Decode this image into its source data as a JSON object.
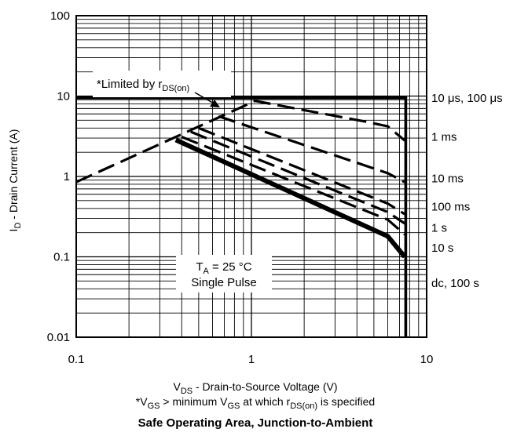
{
  "chart_data": {
    "type": "line",
    "xscale": "log",
    "yscale": "log",
    "xlim": [
      0.1,
      10
    ],
    "ylim": [
      0.01,
      100
    ],
    "grid": true,
    "x_ticks": [
      {
        "value": 0.1,
        "label": "0.1"
      },
      {
        "value": 1,
        "label": "1"
      },
      {
        "value": 10,
        "label": "10"
      }
    ],
    "y_ticks": [
      {
        "value": 100,
        "label": "100"
      },
      {
        "value": 10,
        "label": "10"
      },
      {
        "value": 1,
        "label": "1"
      },
      {
        "value": 0.1,
        "label": "0.1"
      },
      {
        "value": 0.01,
        "label": "0.01"
      }
    ],
    "xlabel": {
      "main": "V",
      "sub": "DS",
      "rest": " - Drain-to-Source Voltage (V)"
    },
    "ylabel": {
      "main": "I",
      "sub": "D",
      "rest": " - Drain Current (A)"
    },
    "footnote": {
      "p1": "*V",
      "s1": "GS",
      "p2": " > minimum V",
      "s2": "GS",
      "p3": " at which r",
      "s3": "DS(on)",
      "p4": " is specified"
    },
    "title": "Safe Operating Area, Junction-to-Ambient",
    "annotation": {
      "p1": "*Limited by r",
      "s1": "DS(on)"
    },
    "conditions": {
      "p1": "T",
      "s1": "A",
      "p2": " = 25 °C",
      "line2": "Single Pulse"
    },
    "series": [
      {
        "name": "10 μs, 100 μs",
        "style": "solid",
        "label_y": 9.5,
        "points": [
          [
            0.1,
            9.5
          ],
          [
            7.6,
            9.5
          ],
          [
            7.6,
            0.01
          ]
        ]
      },
      {
        "name": "1 ms",
        "style": "dashed",
        "label_y": 3.1,
        "points": [
          [
            0.1,
            0.85
          ],
          [
            1.05,
            8.7
          ],
          [
            4.5,
            4.8
          ],
          [
            6.0,
            4.2
          ],
          [
            7.5,
            2.8
          ]
        ]
      },
      {
        "name": "10 ms",
        "style": "dashed",
        "label_y": 0.95,
        "points": [
          [
            0.65,
            5.6
          ],
          [
            6.0,
            1.1
          ],
          [
            7.5,
            0.85
          ]
        ]
      },
      {
        "name": "100 ms",
        "style": "dashed",
        "label_y": 0.42,
        "points": [
          [
            0.5,
            4.0
          ],
          [
            6.0,
            0.46
          ],
          [
            7.5,
            0.34
          ]
        ]
      },
      {
        "name": "1 s",
        "style": "dashed",
        "label_y": 0.23,
        "points": [
          [
            0.45,
            3.6
          ],
          [
            6.0,
            0.36
          ],
          [
            7.5,
            0.26
          ]
        ]
      },
      {
        "name": "10 s",
        "style": "dashed",
        "label_y": 0.13,
        "points": [
          [
            0.4,
            3.1
          ],
          [
            6.0,
            0.29
          ],
          [
            7.5,
            0.19
          ]
        ]
      },
      {
        "name": "dc, 100 s",
        "style": "thick",
        "label_y": 0.047,
        "points": [
          [
            0.37,
            2.85
          ],
          [
            6.0,
            0.18
          ],
          [
            7.5,
            0.1
          ]
        ]
      }
    ]
  }
}
